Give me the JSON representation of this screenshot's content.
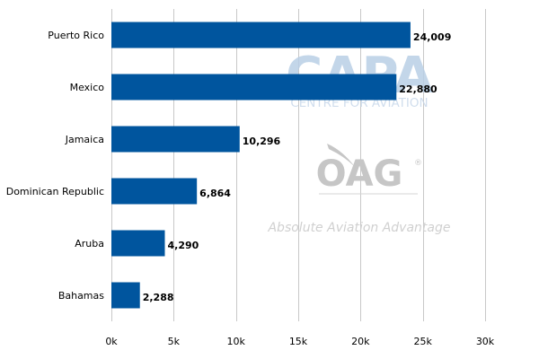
{
  "chart_data": {
    "type": "bar",
    "orientation": "horizontal",
    "categories": [
      "Puerto Rico",
      "Mexico",
      "Jamaica",
      "Dominican Republic",
      "Aruba",
      "Bahamas"
    ],
    "values": [
      24009,
      22880,
      10296,
      6864,
      4290,
      2288
    ],
    "value_labels": [
      "24,009",
      "22,880",
      "10,296",
      "6,864",
      "4,290",
      "2,288"
    ],
    "xlim": [
      0,
      30000
    ],
    "x_ticks": [
      0,
      5000,
      10000,
      15000,
      20000,
      25000,
      30000
    ],
    "x_tick_labels": [
      "0k",
      "5k",
      "10k",
      "15k",
      "20k",
      "25k",
      "30k"
    ],
    "grid": "vertical",
    "title": "",
    "xlabel": "",
    "ylabel": "",
    "bar_color": "#00559e"
  },
  "watermark": {
    "capa_text": "CAPA",
    "capa_subtext": "CENTRE FOR AVIATION",
    "oag_text": "OAG",
    "oag_tagline": "Absolute Aviation Advantage"
  },
  "colors": {
    "bar": "#00559e",
    "grid": "#c8c8c8",
    "capa_watermark": "#b9cfe6",
    "oag_watermark": "#c6c6c6"
  }
}
